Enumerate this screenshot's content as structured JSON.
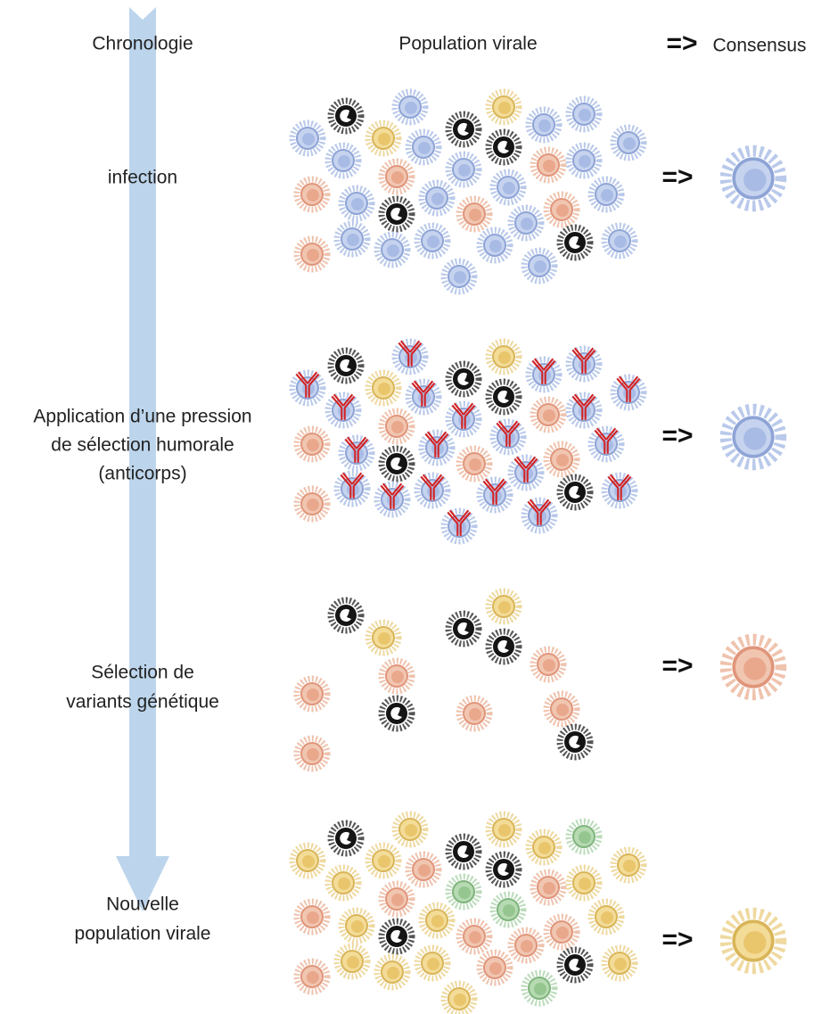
{
  "header": {
    "timeline": "Chronologie",
    "population": "Population virale",
    "arrow": "=>",
    "consensus": "Consensus"
  },
  "stages": [
    {
      "label": [
        "infection"
      ],
      "arrow": "=>"
    },
    {
      "label": [
        "Application d’une pression",
        "de sélection humorale",
        "(anticorps)"
      ],
      "arrow": "=>"
    },
    {
      "label": [
        "Sélection de",
        "variants génétique"
      ],
      "arrow": "=>"
    },
    {
      "label": [
        "Nouvelle",
        "population virale"
      ],
      "arrow": "=>"
    }
  ]
}
